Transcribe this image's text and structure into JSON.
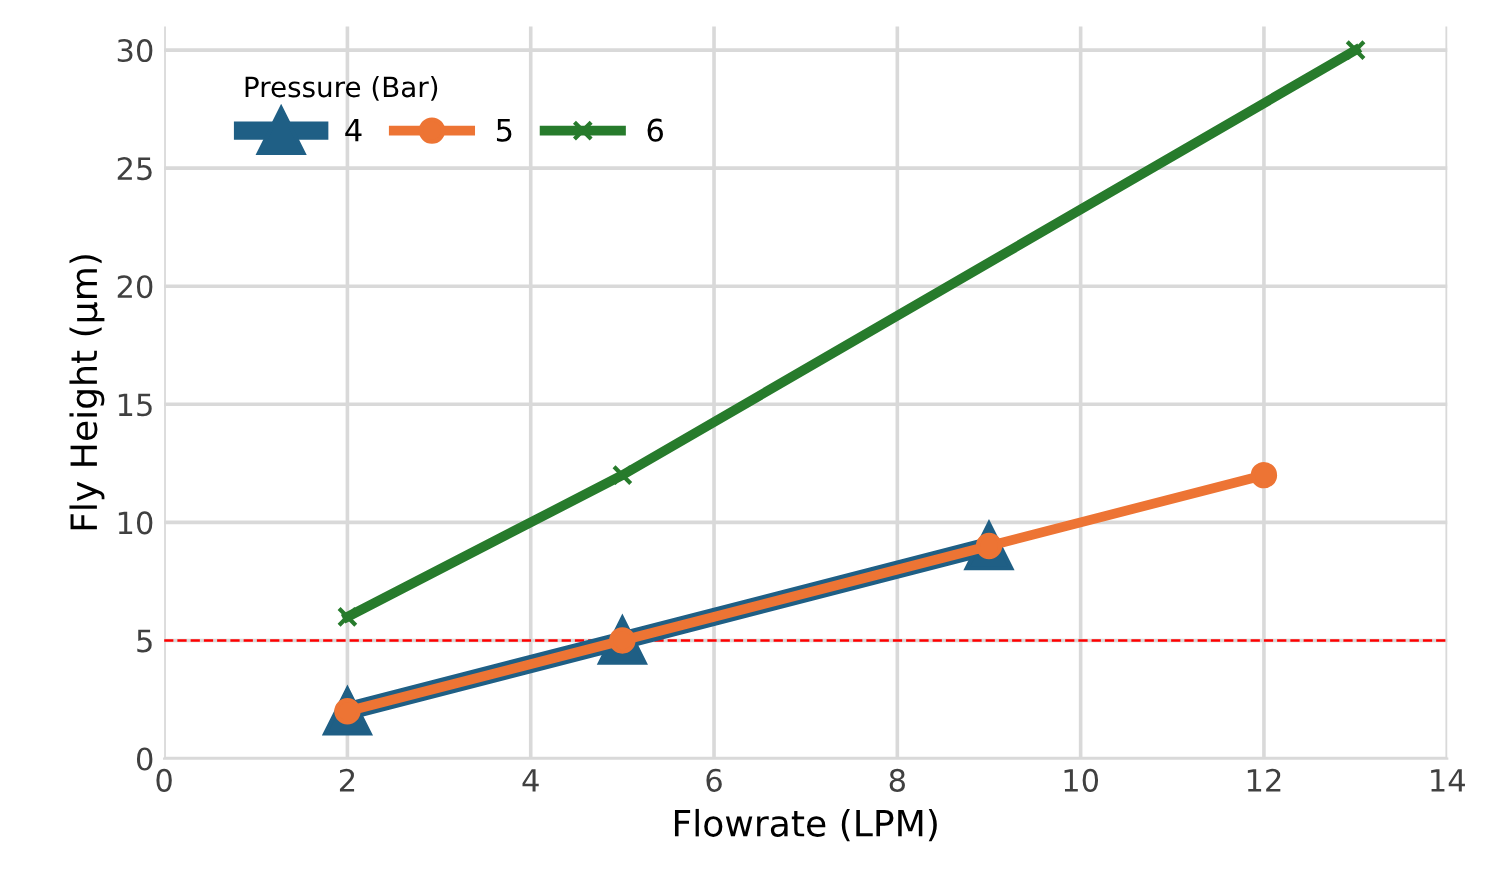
{
  "chart_data": {
    "type": "line",
    "xlabel": "Flowrate (LPM)",
    "ylabel": "Fly Height (µm)",
    "legend_title": "Pressure (Bar)",
    "series": [
      {
        "name": "4",
        "color": "#1f5f85",
        "marker": "triangle",
        "x": [
          2,
          5,
          9
        ],
        "values": [
          2,
          5,
          9
        ]
      },
      {
        "name": "5",
        "color": "#ed7434",
        "marker": "circle",
        "x": [
          2,
          5,
          9,
          12
        ],
        "values": [
          2,
          5,
          9,
          12
        ]
      },
      {
        "name": "6",
        "color": "#277b2c",
        "marker": "cross",
        "x": [
          2,
          5,
          13
        ],
        "values": [
          6,
          12,
          30
        ]
      }
    ],
    "xlim": [
      0,
      14
    ],
    "xticks": [
      0,
      2,
      4,
      6,
      8,
      10,
      12,
      14
    ],
    "ylim": [
      0,
      31
    ],
    "yticks": [
      0,
      5,
      10,
      15,
      20,
      25,
      30
    ],
    "ref_lines": [
      {
        "axis": "y",
        "value": 5,
        "label": null,
        "color": "#ff0000",
        "line_style": "dashed"
      }
    ],
    "grid": true,
    "legend": "top left"
  }
}
